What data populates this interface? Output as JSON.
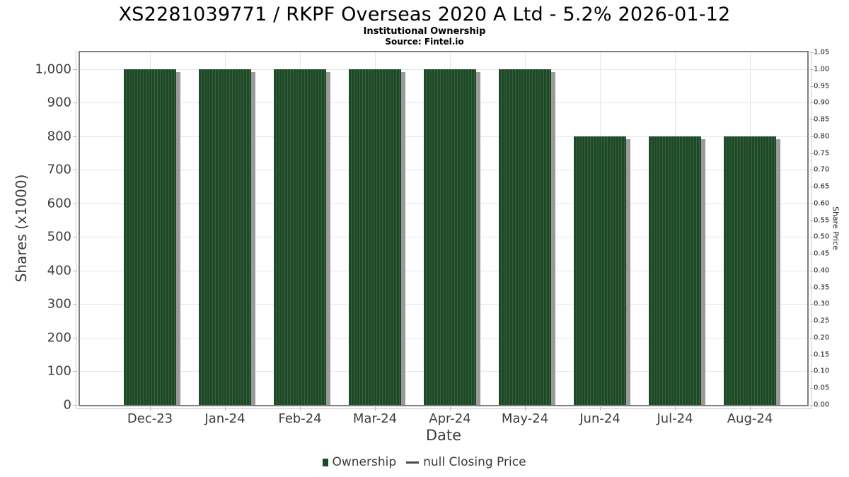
{
  "title": "XS2281039771 / RKPF Overseas 2020 A Ltd - 5.2% 2026-01-12",
  "subtitle": "Institutional Ownership",
  "source": "Source: Fintel.io",
  "axes": {
    "left_label": "Shares (x1000)",
    "right_label": "Share Price",
    "x_label": "Date"
  },
  "legend": {
    "items": [
      {
        "label": "Ownership",
        "marker": "square",
        "color": "#1e4927"
      },
      {
        "label": "null Closing Price",
        "marker": "line",
        "color": "#4a4a4a"
      }
    ]
  },
  "colors": {
    "bar": "#1e4927",
    "bar_stripe": "#396240",
    "bar_shadow": "#9a9a9a",
    "grid": "#e6e6e6"
  },
  "chart_data": {
    "type": "bar",
    "title": "XS2281039771 / RKPF Overseas 2020 A Ltd - 5.2% 2026-01-12",
    "subtitle": "Institutional Ownership",
    "source": "Source: Fintel.io",
    "categories": [
      "Dec-23",
      "Jan-24",
      "Feb-24",
      "Mar-24",
      "Apr-24",
      "May-24",
      "Jun-24",
      "Jul-24",
      "Aug-24"
    ],
    "series": [
      {
        "name": "Ownership",
        "type": "bar",
        "axis": "left",
        "values": [
          1000,
          1000,
          1000,
          1000,
          1000,
          1000,
          800,
          800,
          800
        ],
        "color": "#1e4927",
        "hatch": "vertical-stripes"
      },
      {
        "name": "null Closing Price",
        "type": "line",
        "axis": "right",
        "values": []
      }
    ],
    "xlabel": "Date",
    "ylabel": "Shares (x1000)",
    "ylabel_right": "Share Price",
    "ylim_left": [
      0,
      1050
    ],
    "ylim_right": [
      0,
      1.05
    ],
    "yticks_left": {
      "values": [
        0,
        100,
        200,
        300,
        400,
        500,
        600,
        700,
        800,
        900,
        1000
      ],
      "labels": [
        "0",
        "100",
        "200",
        "300",
        "400",
        "500",
        "600",
        "700",
        "800",
        "900",
        "1,000"
      ]
    },
    "yticks_right": {
      "values": [
        0,
        0.05,
        0.1,
        0.15,
        0.2,
        0.25,
        0.3,
        0.35,
        0.4,
        0.45,
        0.5,
        0.55,
        0.6,
        0.65,
        0.7,
        0.75,
        0.8,
        0.85,
        0.9,
        0.95,
        1.0,
        1.05
      ],
      "labels": [
        "0.00",
        "0.05",
        "0.10",
        "0.15",
        "0.20",
        "0.25",
        "0.30",
        "0.35",
        "0.40",
        "0.45",
        "0.50",
        "0.55",
        "0.60",
        "0.65",
        "0.70",
        "0.75",
        "0.80",
        "0.85",
        "0.90",
        "0.95",
        "1.00",
        "1.05"
      ]
    },
    "grid": true,
    "legend_position": "bottom"
  }
}
